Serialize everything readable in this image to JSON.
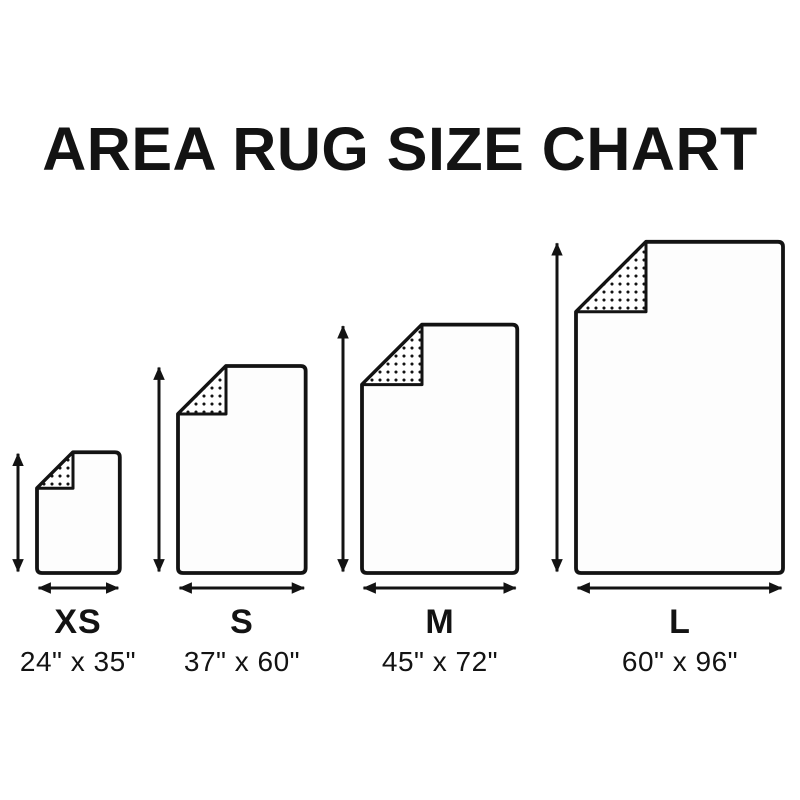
{
  "title": "AREA RUG SIZE CHART",
  "sizes": [
    {
      "label": "XS",
      "dimensions": "24\" x 35\"",
      "width_in": 24,
      "height_in": 35
    },
    {
      "label": "S",
      "dimensions": "37\" x 60\"",
      "width_in": 37,
      "height_in": 60
    },
    {
      "label": "M",
      "dimensions": "45\" x 72\"",
      "width_in": 45,
      "height_in": 72
    },
    {
      "label": "L",
      "dimensions": "60\" x 96\"",
      "width_in": 60,
      "height_in": 96
    }
  ],
  "colors": {
    "ink": "#131313",
    "background": "#ffffff",
    "rug_fill": "#fdfdfd"
  }
}
